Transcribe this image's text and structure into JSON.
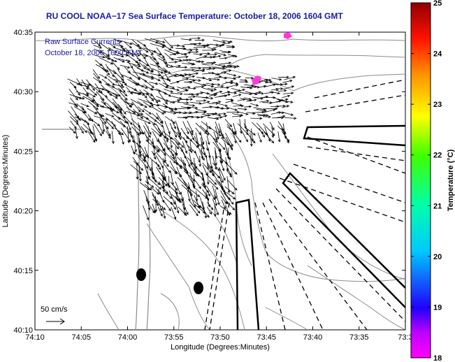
{
  "title": "RU COOL  NOAA−17  Sea Surface Temperature:  October 18, 2006 1604 GMT",
  "legend": {
    "line1": "Raw Surface Currents",
    "line2": "October 18, 2006 1600 GMT",
    "scale_label": "50 cm/s"
  },
  "xaxis": {
    "label": "Longitude (Degrees:Minutes)",
    "ticks": [
      "74:10",
      "74:05",
      "74:00",
      "73:55",
      "73:50",
      "73:45",
      "73:40",
      "73:35",
      "73:3"
    ]
  },
  "yaxis": {
    "label": "Latitude (Degrees:Minutes)",
    "ticks": [
      "40:35",
      "40:30",
      "40:25",
      "40:20",
      "40:15",
      "40:10"
    ]
  },
  "colorbar": {
    "label": "Temperature (°C)",
    "ticks": [
      "25",
      "24",
      "23",
      "22",
      "21",
      "20",
      "19",
      "18"
    ],
    "min": 18,
    "max": 25
  }
}
